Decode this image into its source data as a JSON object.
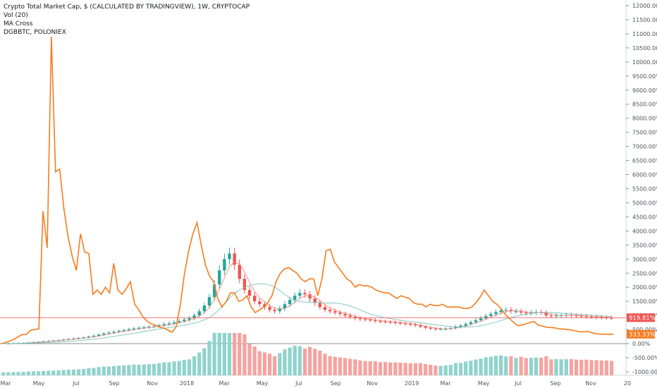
{
  "legend": {
    "main": "Crypto Total Market Cap, $ (CALCULATED BY TRADINGVIEW), 1W, CRYPTOCAP",
    "vol": "Vol (20)",
    "ma": "MA Cross",
    "compare": "DGBBTC, POLONIEX"
  },
  "colors": {
    "up": "#26a69a",
    "down": "#ef5350",
    "compare_line": "#f57c1f",
    "ma_fast": "#f4877f",
    "ma_slow": "#77c2ba",
    "vol_up": "#8fd3cc",
    "vol_down": "#f5a3a0",
    "price_label_red": "#ef5350",
    "price_label_orange": "#f57c1f"
  },
  "chart_data": {
    "type": "line",
    "title": "Crypto Total Market Cap, $ (CALCULATED BY TRADINGVIEW), 1W, CRYPTOCAP",
    "y_scale": "percent",
    "ylim": [
      -1000,
      12000
    ],
    "y_ticks": [
      "12000.00%",
      "11500.00%",
      "11000.00%",
      "10500.00%",
      "10000.00%",
      "9500.00%",
      "9000.00%",
      "8500.00%",
      "8000.00%",
      "7500.00%",
      "7000.00%",
      "6500.00%",
      "6000.00%",
      "5500.00%",
      "5000.00%",
      "4500.00%",
      "4000.00%",
      "3500.00%",
      "3000.00%",
      "2500.00%",
      "2000.00%",
      "1500.00%",
      "1000.00%",
      "500.00%",
      "0.00%",
      "-500.00%",
      "-1000.00%"
    ],
    "x_ticks": [
      "Mar",
      "May",
      "Jul",
      "Sep",
      "Nov",
      "2018",
      "Mar",
      "May",
      "Jul",
      "Sep",
      "Nov",
      "2019",
      "Mar",
      "May",
      "Jul",
      "Sep",
      "Nov",
      "20"
    ],
    "last_value_labels": [
      "919.81%",
      "333.33%"
    ],
    "series": [
      {
        "name": "DGBBTC, POLONIEX",
        "values": [
          0,
          40,
          90,
          150,
          240,
          320,
          330,
          470,
          500,
          520,
          4700,
          3400,
          10900,
          6100,
          6200,
          4800,
          3800,
          3100,
          2600,
          3900,
          3250,
          3200,
          1750,
          1900,
          1750,
          2000,
          1800,
          2850,
          1900,
          1750,
          1950,
          2200,
          1400,
          1200,
          950,
          800,
          700,
          660,
          580,
          550,
          480,
          400,
          600,
          1400,
          2500,
          3300,
          3900,
          4300,
          3500,
          2800,
          2400,
          2200,
          1600,
          1300,
          1500,
          1800,
          1800,
          1500,
          1550,
          1700,
          1300,
          1100,
          1200,
          1300,
          1450,
          1700,
          2200,
          2500,
          2650,
          2700,
          2600,
          2500,
          2300,
          2200,
          2300,
          2300,
          1700,
          2300,
          3300,
          3350,
          2900,
          2700,
          2500,
          2300,
          2200,
          2000,
          2100,
          2050,
          2050,
          2000,
          1900,
          1850,
          1800,
          1800,
          1700,
          1600,
          1700,
          1650,
          1600,
          1450,
          1400,
          1400,
          1300,
          1400,
          1350,
          1350,
          1400,
          1300,
          1300,
          1300,
          1300,
          1250,
          1250,
          1300,
          1450,
          1650,
          1900,
          1700,
          1500,
          1400,
          1250,
          1050,
          900,
          760,
          640,
          660,
          700,
          750,
          780,
          650,
          620,
          580,
          570,
          560,
          520,
          520,
          500,
          480,
          450,
          420,
          420,
          430,
          380,
          350,
          335,
          333,
          335,
          333
        ]
      },
      {
        "name": "Crypto Total Market Cap",
        "values": [
          0,
          5,
          12,
          20,
          28,
          40,
          55,
          65,
          80,
          95,
          110,
          125,
          145,
          165,
          180,
          200,
          220,
          250,
          280,
          320,
          360,
          390,
          420,
          450,
          480,
          510,
          540,
          560,
          580,
          600,
          620,
          650,
          690,
          720,
          760,
          800,
          850,
          900,
          1000,
          1150,
          1350,
          1650,
          2100,
          2600,
          3000,
          3200,
          2800,
          2300,
          1900,
          1700,
          1500,
          1400,
          1300,
          1200,
          1150,
          1250,
          1400,
          1550,
          1700,
          1800,
          1750,
          1600,
          1450,
          1300,
          1200,
          1150,
          1100,
          1050,
          1000,
          950,
          900,
          870,
          850,
          830,
          800,
          790,
          770,
          760,
          740,
          720,
          700,
          680,
          650,
          600,
          560,
          530,
          520,
          520,
          530,
          550,
          600,
          640,
          700,
          760,
          830,
          900,
          980,
          1050,
          1120,
          1180,
          1200,
          1150,
          1150,
          1100,
          1080,
          1100,
          1120,
          1100,
          1000,
          980,
          1000,
          1010,
          1020,
          1000,
          990,
          980,
          960,
          950,
          940,
          930,
          920,
          919.81
        ]
      }
    ],
    "volume_up_down": "green/red bars",
    "grid": false,
    "legend_position": "top-left"
  }
}
